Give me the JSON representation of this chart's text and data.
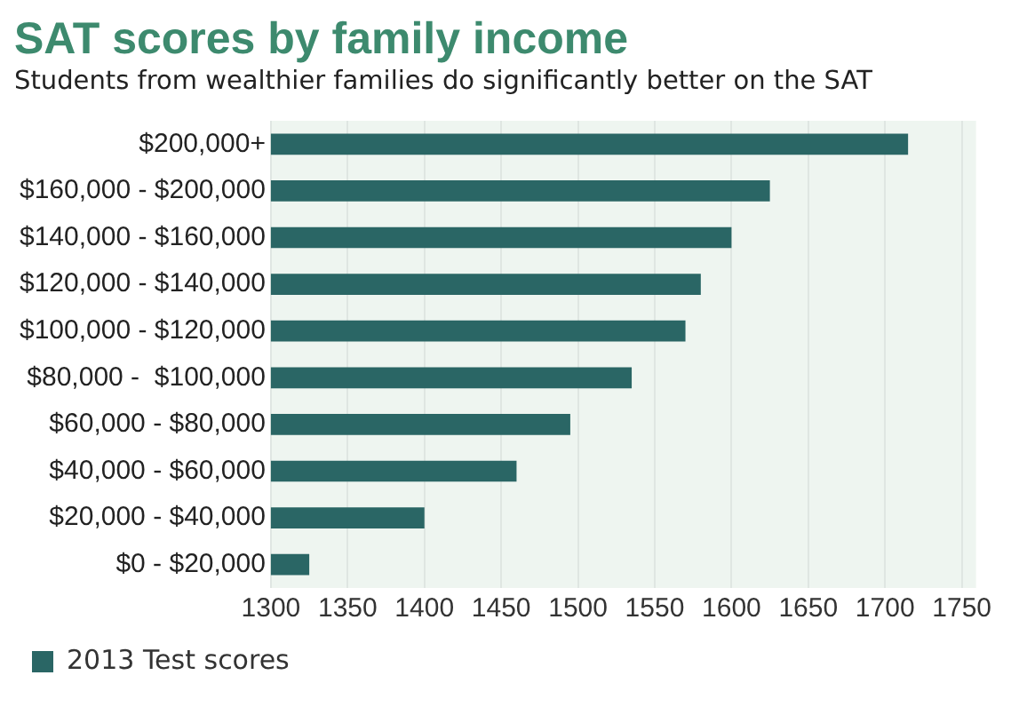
{
  "chart_data": {
    "type": "bar",
    "orientation": "horizontal",
    "title": "SAT scores by family income",
    "subtitle": "Students from wealthier families do significantly better on the SAT",
    "categories": [
      "$200,000+",
      "$160,000 - $200,000",
      "$140,000 - $160,000",
      "$120,000 - $140,000",
      "$100,000 - $120,000",
      "$80,000 -  $100,000",
      "$60,000 - $80,000",
      "$40,000 - $60,000",
      "$20,000 - $40,000",
      "$0 - $20,000"
    ],
    "series": [
      {
        "name": "2013 Test scores",
        "color": "#2a6665",
        "values": [
          1715,
          1625,
          1600,
          1580,
          1570,
          1535,
          1495,
          1460,
          1400,
          1325
        ]
      }
    ],
    "xlim": [
      1300,
      1750
    ],
    "xticks": [
      1300,
      1350,
      1400,
      1450,
      1500,
      1550,
      1600,
      1650,
      1700,
      1750
    ],
    "grid": "x",
    "legend": "bottom left"
  }
}
